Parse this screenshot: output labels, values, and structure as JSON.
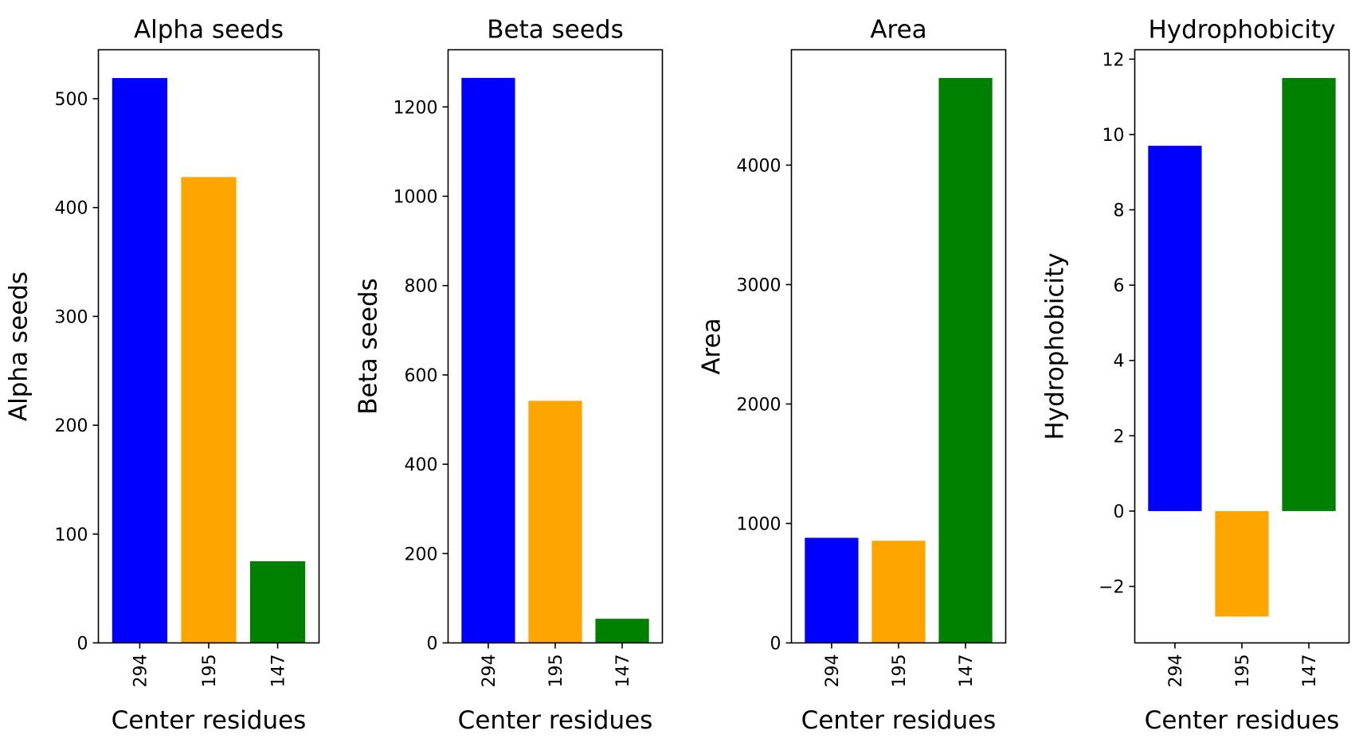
{
  "chart_data": [
    {
      "type": "bar",
      "title": "Alpha seeds",
      "xlabel": "Center residues",
      "ylabel": "Alpha seeds",
      "categories": [
        "294",
        "195",
        "147"
      ],
      "values": [
        519,
        428,
        75
      ],
      "colors": [
        "#0000ff",
        "#ffa500",
        "#008000"
      ],
      "ylim": [
        0,
        545
      ],
      "yticks": [
        0,
        100,
        200,
        300,
        400,
        500
      ],
      "ytick_labels": [
        "0",
        "100",
        "200",
        "300",
        "400",
        "500"
      ],
      "grid": false,
      "legend": "none"
    },
    {
      "type": "bar",
      "title": "Beta seeds",
      "xlabel": "Center residues",
      "ylabel": "Beta seeds",
      "categories": [
        "294",
        "195",
        "147"
      ],
      "values": [
        1265,
        542,
        54
      ],
      "colors": [
        "#0000ff",
        "#ffa500",
        "#008000"
      ],
      "ylim": [
        0,
        1328
      ],
      "yticks": [
        0,
        200,
        400,
        600,
        800,
        1000,
        1200
      ],
      "ytick_labels": [
        "0",
        "200",
        "400",
        "600",
        "800",
        "1000",
        "1200"
      ],
      "grid": false,
      "legend": "none"
    },
    {
      "type": "bar",
      "title": "Area",
      "xlabel": "Center residues",
      "ylabel": "Area",
      "categories": [
        "294",
        "195",
        "147"
      ],
      "values": [
        880,
        855,
        4730
      ],
      "colors": [
        "#0000ff",
        "#ffa500",
        "#008000"
      ],
      "ylim": [
        0,
        4966
      ],
      "yticks": [
        0,
        1000,
        2000,
        3000,
        4000
      ],
      "ytick_labels": [
        "0",
        "1000",
        "2000",
        "3000",
        "4000"
      ],
      "grid": false,
      "legend": "none"
    },
    {
      "type": "bar",
      "title": "Hydrophobicity",
      "xlabel": "Center residues",
      "ylabel": "Hydrophobicity",
      "categories": [
        "294",
        "195",
        "147"
      ],
      "values": [
        9.7,
        -2.8,
        11.5
      ],
      "colors": [
        "#0000ff",
        "#ffa500",
        "#008000"
      ],
      "ylim": [
        -3.5,
        12.25
      ],
      "yticks": [
        -2,
        0,
        2,
        4,
        6,
        8,
        10,
        12
      ],
      "ytick_labels": [
        "−2",
        "0",
        "2",
        "4",
        "6",
        "8",
        "10",
        "12"
      ],
      "grid": false,
      "legend": "none"
    }
  ]
}
